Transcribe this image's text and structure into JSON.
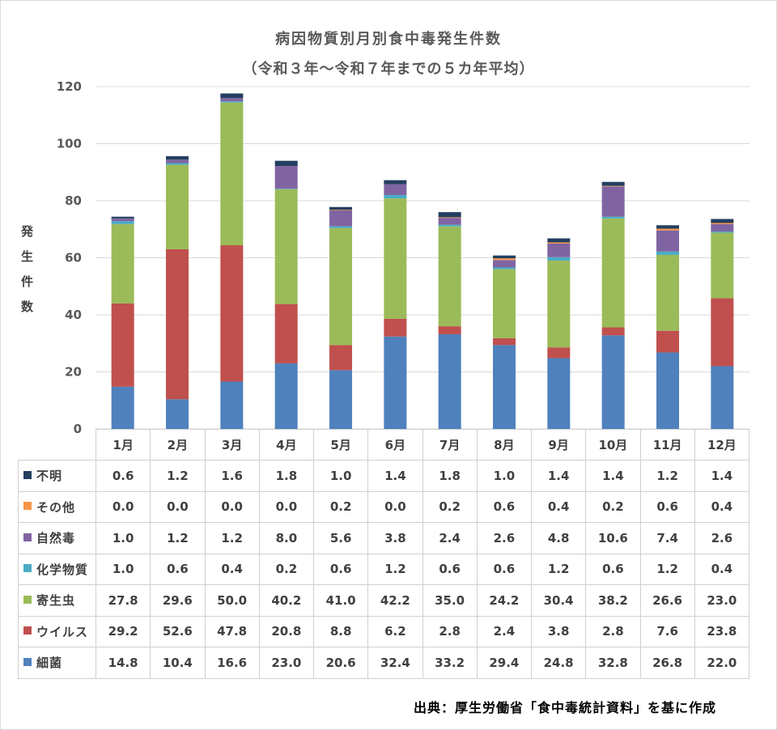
{
  "chart_data": {
    "type": "bar",
    "stacked": true,
    "title": "病因物質別月別食中毒発生件数",
    "subtitle": "（令和３年～令和７年までの５カ年平均）",
    "xlabel": "",
    "ylabel": "発生件数",
    "ylim": [
      0,
      120
    ],
    "yticks": [
      0,
      20,
      40,
      60,
      80,
      100,
      120
    ],
    "grid": true,
    "legend": "table-left",
    "categories": [
      "1月",
      "2月",
      "3月",
      "4月",
      "5月",
      "6月",
      "7月",
      "8月",
      "9月",
      "10月",
      "11月",
      "12月"
    ],
    "series": [
      {
        "name": "細菌",
        "color": "#4F81BD",
        "values": [
          14.8,
          10.4,
          16.6,
          23.0,
          20.6,
          32.4,
          33.2,
          29.4,
          24.8,
          32.8,
          26.8,
          22.0
        ],
        "value_labels": [
          "14.8",
          "10.4",
          "16.6",
          "23.0",
          "20.6",
          "32.4",
          "33.2",
          "29.4",
          "24.8",
          "32.8",
          "26.8",
          "22.0"
        ]
      },
      {
        "name": "ウイルス",
        "color": "#C0504D",
        "values": [
          29.2,
          52.6,
          47.8,
          20.8,
          8.8,
          6.2,
          2.8,
          2.4,
          3.8,
          2.8,
          7.6,
          23.8
        ],
        "value_labels": [
          "29.2",
          "52.6",
          "47.8",
          "20.8",
          "8.8",
          "6.2",
          "2.8",
          "2.4",
          "3.8",
          "2.8",
          "7.6",
          "23.8"
        ]
      },
      {
        "name": "寄生虫",
        "color": "#9BBB59",
        "values": [
          27.8,
          29.6,
          50.0,
          40.2,
          41.0,
          42.2,
          35.0,
          24.2,
          30.4,
          38.2,
          26.6,
          23.0
        ],
        "value_labels": [
          "27.8",
          "29.6",
          "50.0",
          "40.2",
          "41.0",
          "42.2",
          "35.0",
          "24.2",
          "30.4",
          "38.2",
          "26.6",
          "23.0"
        ]
      },
      {
        "name": "化学物質",
        "color": "#4BACC6",
        "values": [
          1.0,
          0.6,
          0.4,
          0.2,
          0.6,
          1.2,
          0.6,
          0.6,
          1.2,
          0.6,
          1.2,
          0.4
        ],
        "value_labels": [
          "1.0",
          "0.6",
          "0.4",
          "0.2",
          "0.6",
          "1.2",
          "0.6",
          "0.6",
          "1.2",
          "0.6",
          "1.2",
          "0.4"
        ]
      },
      {
        "name": "自然毒",
        "color": "#8064A2",
        "values": [
          1.0,
          1.2,
          1.2,
          8.0,
          5.6,
          3.8,
          2.4,
          2.6,
          4.8,
          10.6,
          7.4,
          2.6
        ],
        "value_labels": [
          "1.0",
          "1.2",
          "1.2",
          "8.0",
          "5.6",
          "3.8",
          "2.4",
          "2.6",
          "4.8",
          "10.6",
          "7.4",
          "2.6"
        ]
      },
      {
        "name": "その他",
        "color": "#F79646",
        "values": [
          0.0,
          0.0,
          0.0,
          0.0,
          0.2,
          0.0,
          0.2,
          0.6,
          0.4,
          0.2,
          0.6,
          0.4
        ],
        "value_labels": [
          "0.0",
          "0.0",
          "0.0",
          "0.0",
          "0.2",
          "0.0",
          "0.2",
          "0.6",
          "0.4",
          "0.2",
          "0.6",
          "0.4"
        ]
      },
      {
        "name": "不明",
        "color": "#243F60",
        "values": [
          0.6,
          1.2,
          1.6,
          1.8,
          1.0,
          1.4,
          1.8,
          1.0,
          1.4,
          1.4,
          1.2,
          1.4
        ],
        "value_labels": [
          "0.6",
          "1.2",
          "1.6",
          "1.8",
          "1.0",
          "1.4",
          "1.8",
          "1.0",
          "1.4",
          "1.4",
          "1.2",
          "1.4"
        ]
      }
    ]
  },
  "source": "出典：厚生労働省「食中毒統計資料」を基に作成"
}
